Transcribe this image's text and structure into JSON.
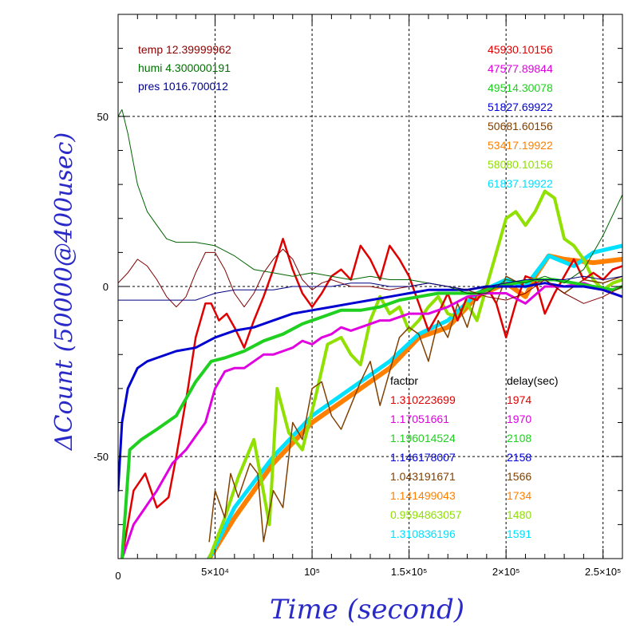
{
  "chart_data": {
    "type": "line",
    "xlabel": "Time (second)",
    "ylabel": "ΔCount (50000@400usec)",
    "xlim": [
      0,
      260000
    ],
    "ylim": [
      -80,
      80
    ],
    "x_ticks": [
      {
        "value": 0,
        "label": "0"
      },
      {
        "value": 50000,
        "label": "5×10⁴"
      },
      {
        "value": 100000,
        "label": "10⁵"
      },
      {
        "value": 150000,
        "label": "1.5×10⁵"
      },
      {
        "value": 200000,
        "label": "2×10⁵"
      },
      {
        "value": 250000,
        "label": "2.5×10⁵"
      }
    ],
    "y_ticks": [
      {
        "value": -50,
        "label": "-50"
      },
      {
        "value": 0,
        "label": "0"
      },
      {
        "value": 50,
        "label": "50"
      }
    ],
    "grid": true,
    "env_legend": [
      {
        "text": "temp 12.39999962",
        "color": "#8b0000"
      },
      {
        "text": "humi 4.300000191",
        "color": "#007000"
      },
      {
        "text": "pres 1016.700012",
        "color": "#00008b"
      }
    ],
    "mean_legend": [
      {
        "text": "45930.10156",
        "color": "#e00000"
      },
      {
        "text": "47577.89844",
        "color": "#e000e0"
      },
      {
        "text": "49514.30078",
        "color": "#20d020"
      },
      {
        "text": "51827.69922",
        "color": "#0000d0"
      },
      {
        "text": "50681.60156",
        "color": "#804000"
      },
      {
        "text": "53417.19922",
        "color": "#ff8000"
      },
      {
        "text": "58080.10156",
        "color": "#90e000"
      },
      {
        "text": "61837.19922",
        "color": "#00e0ff"
      }
    ],
    "factor_header": "factor",
    "delay_header": "delay(sec)",
    "factor_table": [
      {
        "factor": "1.310223699",
        "delay": "1974",
        "color": "#e00000"
      },
      {
        "factor": "1.17051661",
        "delay": "1970",
        "color": "#e000e0"
      },
      {
        "factor": "1.196014524",
        "delay": "2108",
        "color": "#20d020"
      },
      {
        "factor": "1.146178007",
        "delay": "2158",
        "color": "#0000d0"
      },
      {
        "factor": "1.043191671",
        "delay": "1566",
        "color": "#804000"
      },
      {
        "factor": "1.141499043",
        "delay": "1734",
        "color": "#ff8000"
      },
      {
        "factor": "0.9594863057",
        "delay": "1480",
        "color": "#90e000"
      },
      {
        "factor": "1.310836196",
        "delay": "1591",
        "color": "#00e0ff"
      }
    ],
    "series": [
      {
        "color": "#ff8000",
        "stroke": 6,
        "x": [
          47000,
          60000,
          80000,
          100000,
          120000,
          140000,
          155000,
          170000,
          185000,
          200000,
          210000,
          215000,
          222000,
          230000,
          245000,
          260000
        ],
        "y": [
          -80,
          -68,
          -52,
          -40,
          -32,
          -24,
          -15,
          -12,
          -3,
          1,
          -3,
          3,
          9,
          8,
          7,
          8
        ]
      },
      {
        "color": "#00e0ff",
        "stroke": 5,
        "x": [
          47000,
          60000,
          80000,
          100000,
          120000,
          140000,
          155000,
          170000,
          185000,
          200000,
          210000,
          222000,
          235000,
          245000,
          260000
        ],
        "y": [
          -80,
          -65,
          -50,
          -38,
          -30,
          -22,
          -14,
          -10,
          -2,
          2,
          0,
          9,
          6,
          10,
          12
        ]
      },
      {
        "color": "#90e000",
        "stroke": 4,
        "x": [
          47000,
          55000,
          62000,
          70000,
          78000,
          82000,
          88000,
          95000,
          102000,
          108000,
          115000,
          120000,
          125000,
          130000,
          135000,
          140000,
          145000,
          150000,
          155000,
          160000,
          165000,
          170000,
          175000,
          180000,
          185000,
          190000,
          195000,
          200000,
          205000,
          210000,
          215000,
          220000,
          225000,
          230000,
          235000,
          240000,
          245000,
          250000,
          255000,
          260000
        ],
        "y": [
          -80,
          -68,
          -56,
          -45,
          -70,
          -30,
          -43,
          -48,
          -32,
          -17,
          -15,
          -20,
          -23,
          -10,
          -3,
          -8,
          -6,
          -13,
          -10,
          -6,
          -3,
          -8,
          -9,
          -5,
          -10,
          0,
          10,
          20,
          22,
          18,
          22,
          28,
          26,
          14,
          12,
          8,
          2,
          -1,
          1,
          2
        ]
      },
      {
        "color": "#804000",
        "stroke": 1.5,
        "x": [
          47000,
          50000,
          55000,
          58000,
          62000,
          68000,
          72000,
          75000,
          80000,
          85000,
          90000,
          95000,
          100000,
          105000,
          110000,
          115000,
          120000,
          125000,
          130000,
          135000,
          140000,
          145000,
          150000,
          155000,
          160000,
          165000,
          170000,
          175000,
          180000,
          185000,
          190000,
          195000,
          200000,
          210000,
          220000,
          230000,
          240000,
          250000,
          260000
        ],
        "y": [
          -75,
          -60,
          -68,
          -55,
          -62,
          -52,
          -55,
          -75,
          -60,
          -65,
          -40,
          -45,
          -30,
          -28,
          -38,
          -42,
          -35,
          -28,
          -22,
          -35,
          -25,
          -15,
          -12,
          -14,
          -22,
          -10,
          -15,
          -5,
          -12,
          -2,
          0,
          -5,
          3,
          0,
          2,
          -2,
          2,
          1,
          3
        ]
      },
      {
        "color": "#e00000",
        "stroke": 2.5,
        "x": [
          2000,
          8000,
          14000,
          20000,
          26000,
          30000,
          36000,
          40000,
          45000,
          48000,
          52000,
          56000,
          60000,
          65000,
          70000,
          75000,
          80000,
          85000,
          90000,
          95000,
          100000,
          105000,
          110000,
          115000,
          120000,
          125000,
          130000,
          135000,
          140000,
          145000,
          150000,
          155000,
          160000,
          165000,
          170000,
          175000,
          180000,
          185000,
          190000,
          195000,
          200000,
          205000,
          210000,
          215000,
          220000,
          225000,
          230000,
          235000,
          240000,
          245000,
          250000,
          255000,
          260000
        ],
        "y": [
          -80,
          -60,
          -55,
          -65,
          -62,
          -50,
          -30,
          -15,
          -5,
          -5,
          -10,
          -8,
          -12,
          -18,
          -10,
          -3,
          5,
          14,
          5,
          -2,
          -6,
          -2,
          3,
          5,
          2,
          12,
          8,
          2,
          12,
          8,
          3,
          -5,
          -13,
          -8,
          -2,
          -10,
          -3,
          -4,
          0,
          -5,
          -15,
          -5,
          3,
          2,
          -8,
          -2,
          3,
          8,
          2,
          4,
          2,
          5,
          6
        ]
      },
      {
        "color": "#e000e0",
        "stroke": 3,
        "x": [
          2000,
          8000,
          14000,
          20000,
          28000,
          35000,
          40000,
          45000,
          50000,
          55000,
          60000,
          65000,
          70000,
          75000,
          80000,
          85000,
          90000,
          95000,
          100000,
          105000,
          110000,
          115000,
          120000,
          125000,
          130000,
          135000,
          140000,
          150000,
          160000,
          170000,
          180000,
          190000,
          200000,
          210000,
          220000,
          230000,
          240000,
          250000,
          260000
        ],
        "y": [
          -80,
          -70,
          -65,
          -60,
          -52,
          -48,
          -44,
          -40,
          -30,
          -25,
          -24,
          -24,
          -22,
          -20,
          -20,
          -19,
          -18,
          -16,
          -17,
          -15,
          -14,
          -12,
          -13,
          -12,
          -11,
          -10,
          -10,
          -8,
          -8,
          -6,
          -3,
          -2,
          -2,
          -5,
          0,
          0,
          1,
          -1,
          -3
        ]
      },
      {
        "color": "#20d020",
        "stroke": 4,
        "x": [
          2000,
          6000,
          12000,
          20000,
          30000,
          40000,
          48000,
          55000,
          65000,
          75000,
          85000,
          95000,
          105000,
          115000,
          125000,
          135000,
          145000,
          155000,
          165000,
          175000,
          185000,
          195000,
          205000,
          215000,
          225000,
          235000,
          245000,
          255000,
          260000
        ],
        "y": [
          -80,
          -48,
          -45,
          -42,
          -38,
          -28,
          -22,
          -21,
          -19,
          -16,
          -14,
          -11,
          -9,
          -7,
          -7,
          -6,
          -4,
          -3,
          -2,
          -2,
          -2,
          0,
          1,
          2,
          2,
          1,
          0,
          -1,
          0
        ]
      },
      {
        "color": "#0000d0",
        "stroke": 3,
        "x": [
          0,
          2000,
          5000,
          10000,
          15000,
          20000,
          30000,
          40000,
          50000,
          60000,
          70000,
          80000,
          90000,
          100000,
          110000,
          120000,
          130000,
          140000,
          150000,
          160000,
          170000,
          180000,
          190000,
          200000,
          210000,
          220000,
          230000,
          240000,
          250000,
          260000
        ],
        "y": [
          -60,
          -40,
          -30,
          -24,
          -22,
          -21,
          -19,
          -18,
          -15,
          -13,
          -12,
          -10,
          -8,
          -7,
          -6,
          -5,
          -4,
          -3,
          -2,
          -1,
          -1,
          -1,
          0,
          0,
          0,
          1,
          0,
          0,
          -1,
          -3
        ]
      },
      {
        "color": "#006400",
        "stroke": 1,
        "x": [
          0,
          2000,
          5000,
          10000,
          15000,
          20000,
          25000,
          30000,
          40000,
          50000,
          60000,
          70000,
          80000,
          90000,
          100000,
          110000,
          120000,
          130000,
          140000,
          150000,
          160000,
          170000,
          180000,
          190000,
          200000,
          210000,
          220000,
          230000,
          240000,
          250000,
          260000
        ],
        "y": [
          50,
          52,
          45,
          30,
          22,
          18,
          14,
          13,
          13,
          12,
          9,
          5,
          4,
          3,
          4,
          3,
          2,
          3,
          2,
          2,
          1,
          0,
          -2,
          -2,
          2,
          1,
          3,
          1,
          5,
          15,
          27
        ]
      },
      {
        "color": "#800000",
        "stroke": 1,
        "x": [
          0,
          5000,
          10000,
          15000,
          20000,
          25000,
          30000,
          35000,
          40000,
          45000,
          50000,
          55000,
          60000,
          65000,
          70000,
          75000,
          80000,
          85000,
          90000,
          95000,
          100000,
          105000,
          110000,
          115000,
          120000,
          130000,
          140000,
          150000,
          160000,
          170000,
          180000,
          190000,
          200000,
          210000,
          220000,
          230000,
          240000,
          250000,
          260000
        ],
        "y": [
          1,
          4,
          8,
          6,
          2,
          -3,
          -6,
          -3,
          4,
          10,
          10,
          5,
          -2,
          -6,
          -2,
          4,
          8,
          11,
          8,
          2,
          -1,
          1,
          2,
          1,
          0,
          0,
          -1,
          0,
          1,
          0,
          -1,
          -3,
          -4,
          -2,
          2,
          -2,
          -5,
          -3,
          0
        ]
      },
      {
        "color": "#000080",
        "stroke": 1,
        "x": [
          0,
          10000,
          20000,
          30000,
          40000,
          45000,
          50000,
          60000,
          70000,
          80000,
          90000,
          100000,
          110000,
          120000,
          130000,
          140000,
          150000,
          160000,
          170000,
          180000,
          190000,
          200000,
          210000,
          220000,
          230000,
          240000,
          250000,
          260000
        ],
        "y": [
          -4,
          -4,
          -4,
          -4,
          -4,
          -3,
          -2,
          -1,
          -1,
          -1,
          0,
          0,
          0,
          1,
          1,
          0,
          0,
          1,
          0,
          -1,
          0,
          1,
          2,
          2,
          2,
          3,
          2,
          3
        ]
      }
    ]
  }
}
